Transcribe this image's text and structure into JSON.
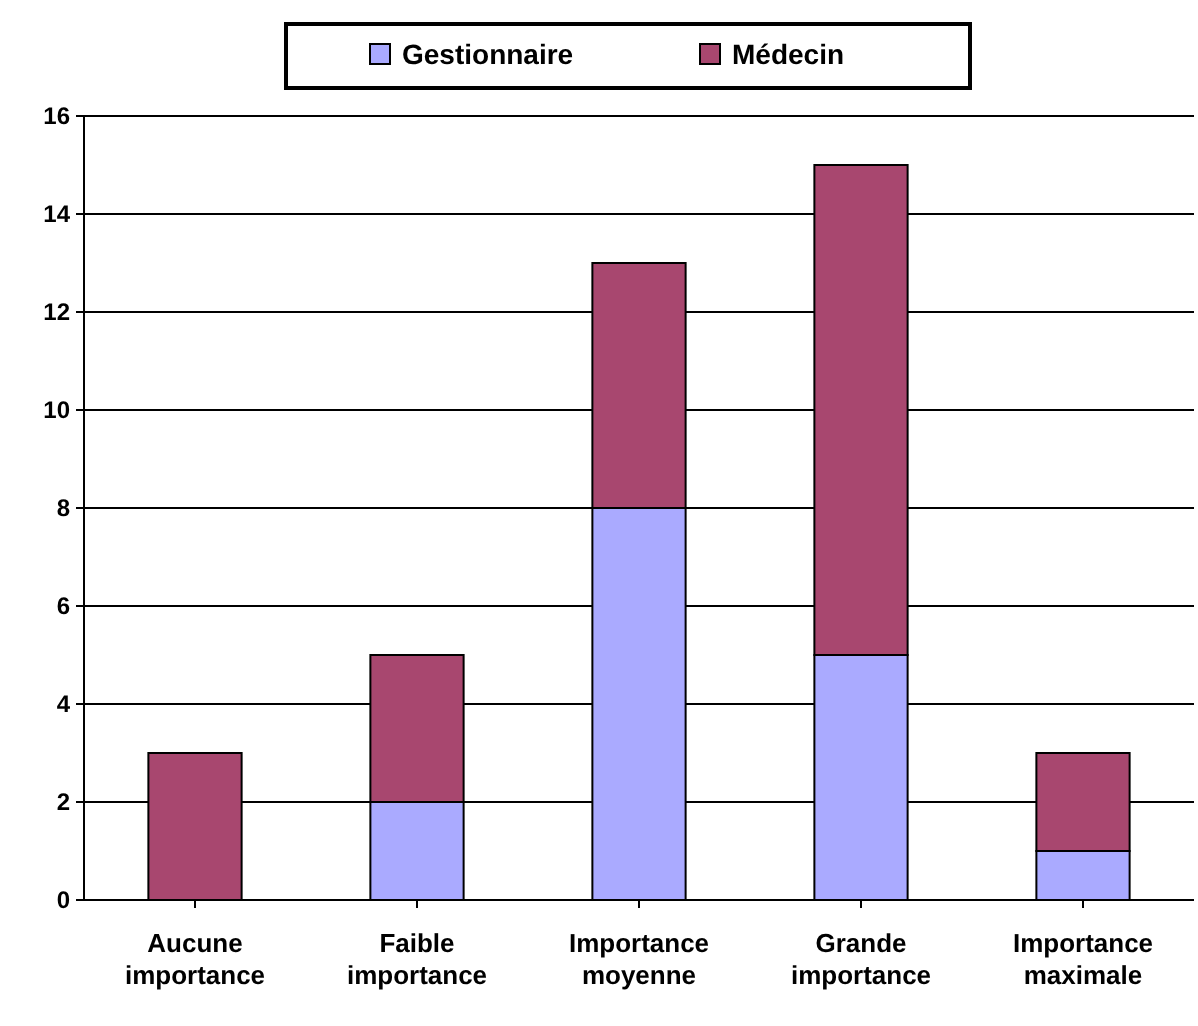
{
  "chart_data": {
    "type": "bar",
    "stacked": true,
    "categories": [
      "Aucune importance",
      "Faible importance",
      "Importance moyenne",
      "Grande importance",
      "Importance maximale"
    ],
    "series": [
      {
        "name": "Gestionnaire",
        "color": "#aaaaff",
        "values": [
          0,
          2,
          8,
          5,
          1
        ]
      },
      {
        "name": "Médecin",
        "color": "#a8476f",
        "values": [
          3,
          3,
          5,
          10,
          2
        ]
      }
    ],
    "ylim": [
      0,
      16
    ],
    "yticks": [
      0,
      2,
      4,
      6,
      8,
      10,
      12,
      14,
      16
    ],
    "grid": "y",
    "legend": "top"
  }
}
